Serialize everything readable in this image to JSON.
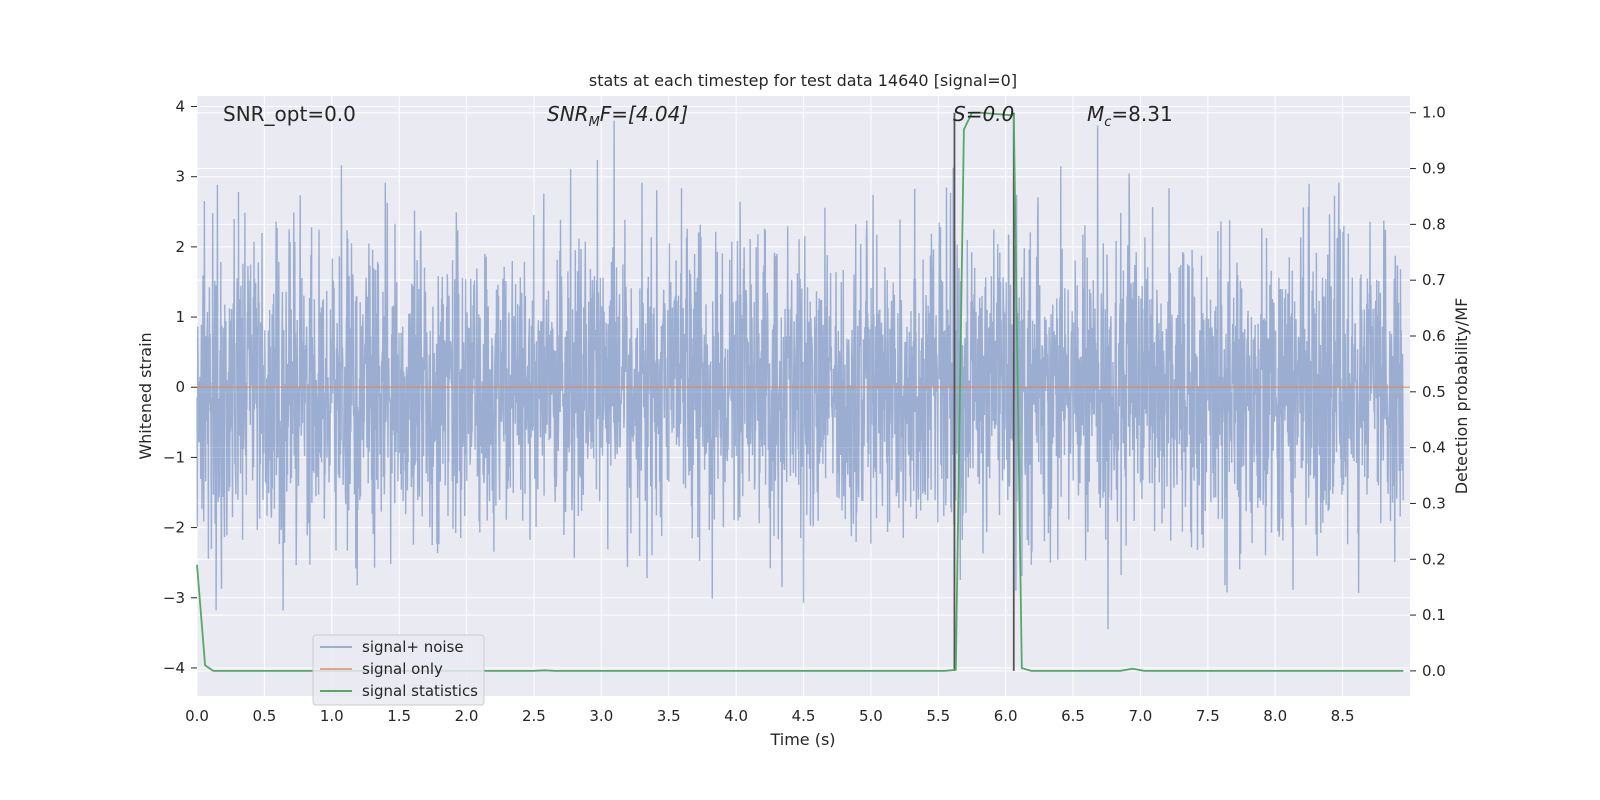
{
  "chart_data": {
    "type": "line",
    "title": "stats at each timestep for test data 14640 [signal=0]",
    "xlabel": "Time (s)",
    "ylabel": "Whitened strain",
    "y2label": "Detection probability/MF",
    "xlim": [
      0.0,
      9.0
    ],
    "ylim": [
      -4.4,
      4.15
    ],
    "y2lim": [
      -0.045,
      1.03
    ],
    "x_ticks": [
      "0.0",
      "0.5",
      "1.0",
      "1.5",
      "2.0",
      "2.5",
      "3.0",
      "3.5",
      "4.0",
      "4.5",
      "5.0",
      "5.5",
      "6.0",
      "6.5",
      "7.0",
      "7.5",
      "8.0",
      "8.5"
    ],
    "y_ticks": [
      "4",
      "3",
      "2",
      "1",
      "0",
      "−1",
      "−2",
      "−3",
      "−4"
    ],
    "y2_ticks": [
      "1.0",
      "0.9",
      "0.8",
      "0.7",
      "0.6",
      "0.5",
      "0.4",
      "0.3",
      "0.2",
      "0.1",
      "0.0"
    ],
    "grid": true,
    "legend_position": "lower-left",
    "colors": {
      "noise": "#4c72b0",
      "signal": "#dd8452",
      "stats": "#55a868",
      "vline": "#555555",
      "background": "#eaeaf2",
      "grid": "#ffffff"
    },
    "annotations": {
      "snr_opt": "SNR_opt=0.0",
      "snr_mf_main": "SNR",
      "snr_mf_sub": "M",
      "snr_mf_rest": "F=[4.04]",
      "s_stat": "S=0.0",
      "mc_main": "M",
      "mc_sub": "c",
      "mc_rest": "=8.31"
    },
    "vertical_lines_x": [
      5.62,
      6.06
    ],
    "series": [
      {
        "name": "signal+ noise",
        "axis": "left",
        "description": "whitened strain noise, sampled densely",
        "envelope": {
          "typical_amplitude": 1.5,
          "max": 3.8,
          "min": -3.45
        }
      },
      {
        "name": "signal only",
        "axis": "left",
        "x": [
          0.0,
          9.0
        ],
        "y": [
          0.0,
          0.0
        ]
      },
      {
        "name": "signal statistics",
        "axis": "right",
        "x": [
          0.0,
          0.06,
          0.12,
          2.5,
          2.58,
          2.65,
          5.55,
          5.63,
          5.69,
          5.75,
          5.81,
          6.06,
          6.12,
          6.19,
          6.85,
          6.94,
          7.03,
          8.95
        ],
        "y": [
          0.19,
          0.01,
          0.0,
          0.0,
          0.001,
          0.0,
          0.0,
          0.002,
          0.97,
          1.0,
          1.0,
          0.995,
          0.005,
          0.0,
          0.0,
          0.004,
          0.0,
          0.0
        ]
      }
    ]
  }
}
